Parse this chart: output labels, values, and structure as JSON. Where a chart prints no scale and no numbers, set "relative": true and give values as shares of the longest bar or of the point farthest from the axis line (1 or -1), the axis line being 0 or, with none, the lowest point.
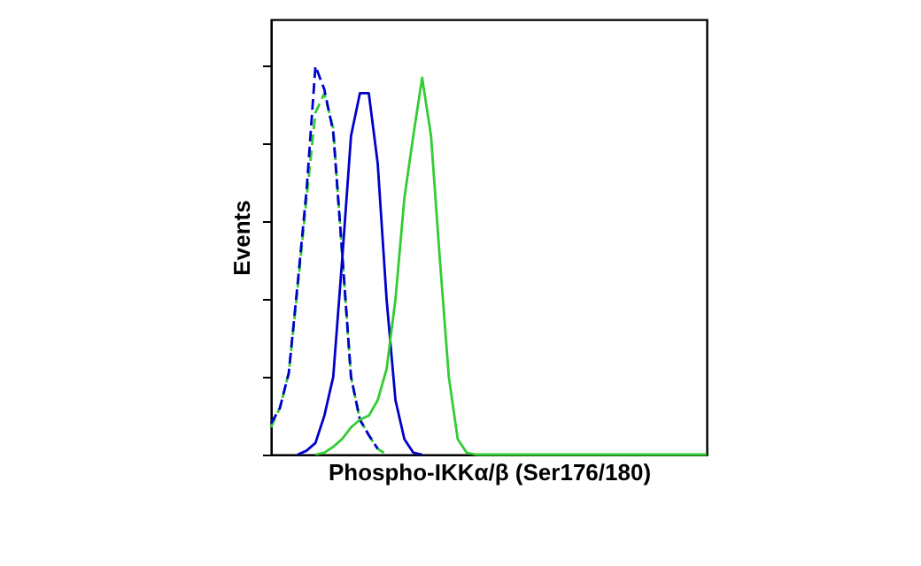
{
  "chart_data": {
    "type": "line",
    "relative": true,
    "ylabel": "Events",
    "xlabel": "Phospho-IKKα/β (Ser176/180)",
    "grid": false,
    "marker": "none",
    "categories": [
      null,
      null,
      null,
      null,
      null,
      null,
      null,
      null,
      null,
      null,
      null,
      null,
      null,
      null,
      null,
      null,
      null,
      null,
      null,
      null,
      null,
      null,
      null,
      null,
      null,
      null,
      null,
      null,
      null,
      null,
      null,
      null,
      null,
      null,
      null,
      null,
      null,
      null,
      null,
      null,
      null,
      null,
      null,
      null,
      null,
      null,
      null,
      null,
      null,
      null
    ],
    "series": [
      {
        "color": "#33cc33",
        "line_style": "dashed",
        "values": [
          0.07,
          0.12,
          0.21,
          0.43,
          0.66,
          0.88,
          0.93,
          0.84,
          0.52,
          0.2,
          0.09,
          0.05,
          0.015,
          0,
          null,
          null,
          null,
          null,
          null,
          null,
          null,
          null,
          null,
          null,
          null,
          null,
          null,
          null,
          null,
          null,
          null,
          null,
          null,
          null,
          null,
          null,
          null,
          null,
          null,
          null,
          null,
          null,
          null,
          null,
          null,
          null,
          null,
          null,
          null,
          null
        ]
      },
      {
        "color": "#0000cc",
        "line_style": "dashed",
        "values": [
          0.08,
          0.12,
          0.21,
          0.44,
          0.68,
          1.0,
          0.94,
          0.83,
          0.52,
          0.2,
          0.09,
          0.05,
          0.015,
          null,
          null,
          null,
          null,
          null,
          null,
          null,
          null,
          null,
          null,
          null,
          null,
          null,
          null,
          null,
          null,
          null,
          null,
          null,
          null,
          null,
          null,
          null,
          null,
          null,
          null,
          null,
          null,
          null,
          null,
          null,
          null,
          null,
          null,
          null,
          null,
          null
        ]
      },
      {
        "color": "#0000cc",
        "line_style": "solid",
        "values": [
          null,
          null,
          null,
          0,
          0.01,
          0.03,
          0.1,
          0.2,
          0.5,
          0.82,
          0.93,
          0.93,
          0.75,
          0.4,
          0.14,
          0.04,
          0.005,
          0,
          null,
          null,
          null,
          null,
          null,
          null,
          null,
          null,
          null,
          null,
          null,
          null,
          null,
          null,
          null,
          null,
          null,
          null,
          null,
          null,
          null,
          null,
          null,
          null,
          null,
          null,
          null,
          null,
          null,
          null,
          null,
          null
        ]
      },
      {
        "color": "#33cc33",
        "line_style": "solid",
        "values": [
          null,
          null,
          null,
          null,
          null,
          0,
          0.005,
          0.02,
          0.04,
          0.07,
          0.09,
          0.1,
          0.14,
          0.22,
          0.4,
          0.66,
          0.82,
          0.97,
          0.82,
          0.5,
          0.2,
          0.04,
          0.005,
          0,
          0,
          0,
          0,
          0,
          0,
          0,
          0,
          0,
          0,
          0,
          0,
          0,
          0,
          0,
          0,
          0,
          0,
          0,
          0,
          0,
          0,
          0,
          0,
          0,
          0,
          0
        ]
      }
    ]
  }
}
